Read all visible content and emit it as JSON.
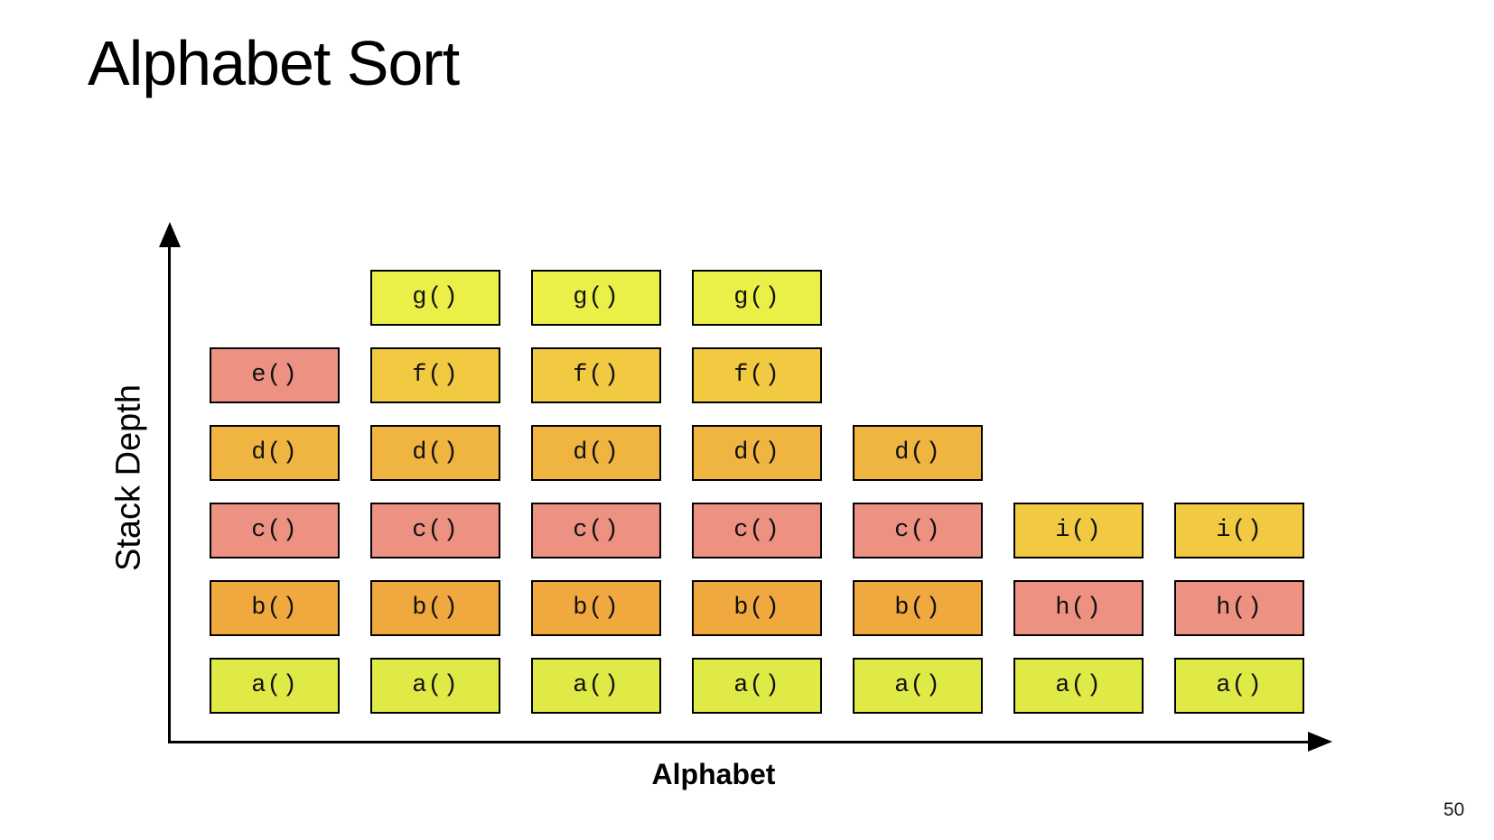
{
  "slide": {
    "title": "Alphabet Sort",
    "page_number": "50",
    "y_axis_label": "Stack Depth",
    "x_axis_label": "Alphabet"
  },
  "colors": {
    "a": "#E0EA46",
    "b": "#F0A93E",
    "c": "#ED9283",
    "d": "#F0B441",
    "e": "#ED9283",
    "f": "#F2CA41",
    "g": "#EBF048",
    "h": "#ED9283",
    "i": "#F2CA41",
    "border": "#000000",
    "axis": "#000000"
  },
  "stacks": {
    "columns": [
      {
        "frames": [
          "a()",
          "b()",
          "c()",
          "d()",
          "e()"
        ]
      },
      {
        "frames": [
          "a()",
          "b()",
          "c()",
          "d()",
          "f()",
          "g()"
        ]
      },
      {
        "frames": [
          "a()",
          "b()",
          "c()",
          "d()",
          "f()",
          "g()"
        ]
      },
      {
        "frames": [
          "a()",
          "b()",
          "c()",
          "d()",
          "f()",
          "g()"
        ]
      },
      {
        "frames": [
          "a()",
          "b()",
          "c()",
          "d()"
        ]
      },
      {
        "frames": [
          "a()",
          "h()",
          "i()"
        ]
      },
      {
        "frames": [
          "a()",
          "h()",
          "i()"
        ]
      }
    ]
  }
}
